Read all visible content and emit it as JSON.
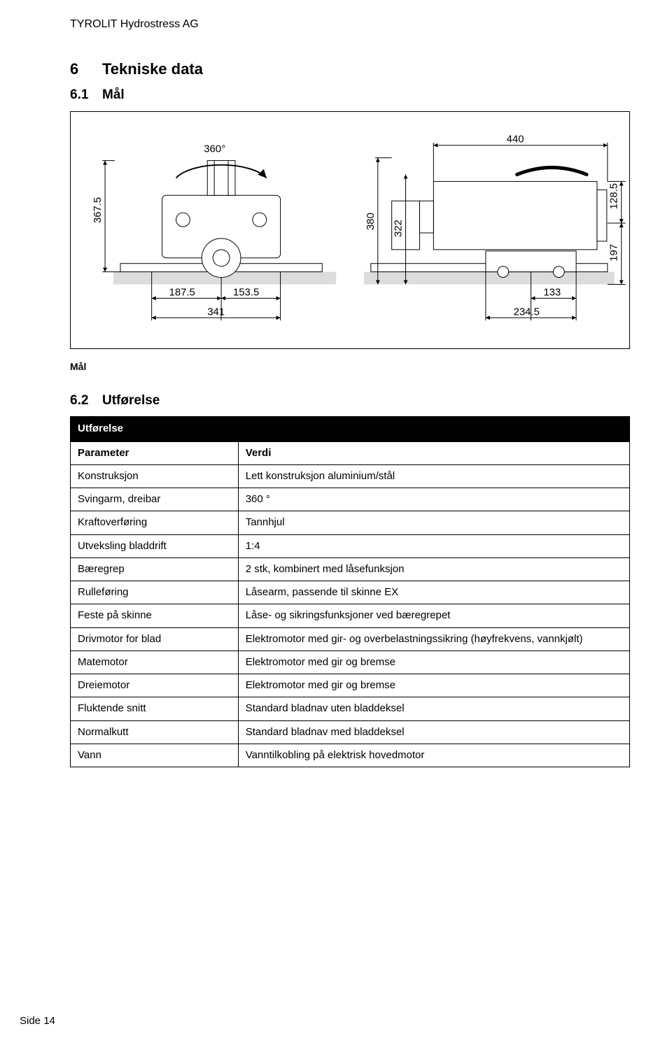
{
  "header": {
    "company": "TYROLIT Hydrostress AG"
  },
  "section6": {
    "num": "6",
    "title": "Tekniske data"
  },
  "section61": {
    "num": "6.1",
    "title": "Mål"
  },
  "section62": {
    "num": "6.2",
    "title": "Utførelse"
  },
  "figure": {
    "caption": "Mål"
  },
  "drawing": {
    "border_color": "#000000",
    "bg": "#ffffff",
    "ground_fill": "#dcdcdc",
    "dims": {
      "left_height": "367.5",
      "rotation": "360°",
      "top_right": "440",
      "mid_h1": "380",
      "mid_h2": "322",
      "right_h1": "128.5",
      "right_h2": "197",
      "bl1": "187.5",
      "bl2": "153.5",
      "bl_sum": "341",
      "br1": "133",
      "br2": "234.5"
    }
  },
  "table": {
    "header": "Utførelse",
    "col1": "Parameter",
    "col2": "Verdi",
    "rows": [
      {
        "p": "Konstruksjon",
        "v": "Lett konstruksjon aluminium/stål"
      },
      {
        "p": "Svingarm, dreibar",
        "v": "360 °"
      },
      {
        "p": "Kraftoverføring",
        "v": "Tannhjul"
      },
      {
        "p": "Utveksling bladdrift",
        "v": "1:4"
      },
      {
        "p": "Bæregrep",
        "v": "2 stk, kombinert med låsefunksjon"
      },
      {
        "p": "Rulleføring",
        "v": "Låsearm, passende til skinne EX"
      },
      {
        "p": "Feste på skinne",
        "v": "Låse- og sikringsfunksjoner ved bæregrepet"
      },
      {
        "p": "Drivmotor for blad",
        "v": "Elektromotor med gir- og overbelastningssikring (høyfrekvens, vannkjølt)"
      },
      {
        "p": "Matemotor",
        "v": "Elektromotor med gir og bremse"
      },
      {
        "p": "Dreiemotor",
        "v": "Elektromotor med gir og bremse"
      },
      {
        "p": "Fluktende snitt",
        "v": "Standard bladnav uten bladdeksel"
      },
      {
        "p": "Normalkutt",
        "v": "Standard bladnav med bladdeksel"
      },
      {
        "p": "Vann",
        "v": "Vanntilkobling på elektrisk hovedmotor"
      }
    ]
  },
  "footer": {
    "page": "Side 14"
  }
}
